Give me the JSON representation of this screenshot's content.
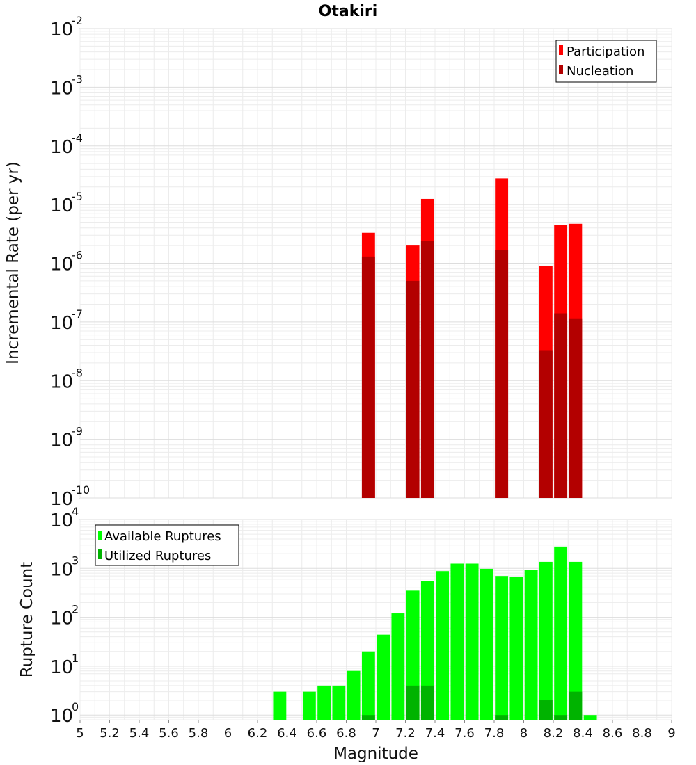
{
  "title": "Otakiri",
  "xlabel": "Magnitude",
  "chart_data": [
    {
      "type": "bar",
      "ylabel": "Incremental Rate (per yr)",
      "yscale": "log",
      "ylim": [
        1e-10,
        0.01
      ],
      "xlim": [
        5,
        9
      ],
      "grid": true,
      "legend_position": "top-right",
      "bin_width": 0.1,
      "y_tick_exponents": [
        "-2",
        "-3",
        "-4",
        "-5",
        "-6",
        "-7",
        "-8",
        "-9",
        "-10"
      ],
      "y_tick_base": "10",
      "series": [
        {
          "name": "Participation",
          "color": "#ff0000",
          "x": [
            6.95,
            7.25,
            7.35,
            7.85,
            8.15,
            8.25,
            8.35
          ],
          "values": [
            3.3e-06,
            2e-06,
            1.25e-05,
            2.8e-05,
            9e-07,
            4.5e-06,
            4.7e-06
          ]
        },
        {
          "name": "Nucleation",
          "color": "#b30000",
          "x": [
            6.95,
            7.25,
            7.35,
            7.85,
            8.15,
            8.25,
            8.35
          ],
          "values": [
            1.3e-06,
            5e-07,
            2.4e-06,
            1.7e-06,
            3.3e-08,
            1.4e-07,
            1.15e-07
          ]
        }
      ]
    },
    {
      "type": "bar",
      "ylabel": "Rupture Count",
      "yscale": "log",
      "ylim": [
        0.8,
        10000
      ],
      "xlim": [
        5,
        9
      ],
      "grid": true,
      "legend_position": "top-left",
      "bin_width": 0.1,
      "y_tick_exponents": [
        "4",
        "3",
        "2",
        "1",
        "0"
      ],
      "y_tick_base": "10",
      "x_ticks": [
        "5",
        "5.2",
        "5.4",
        "5.6",
        "5.8",
        "6",
        "6.2",
        "6.4",
        "6.6",
        "6.8",
        "7",
        "7.2",
        "7.4",
        "7.6",
        "7.8",
        "8",
        "8.2",
        "8.4",
        "8.6",
        "8.8",
        "9"
      ],
      "series": [
        {
          "name": "Available Ruptures",
          "color": "#00ff00",
          "x": [
            6.35,
            6.55,
            6.65,
            6.75,
            6.85,
            6.95,
            7.05,
            7.15,
            7.25,
            7.35,
            7.45,
            7.55,
            7.65,
            7.75,
            7.85,
            7.95,
            8.05,
            8.15,
            8.25,
            8.35,
            8.45
          ],
          "values": [
            3,
            3,
            4,
            4,
            8,
            20,
            44,
            120,
            350,
            550,
            880,
            1250,
            1250,
            980,
            700,
            670,
            920,
            1360,
            2800,
            1360,
            1
          ]
        },
        {
          "name": "Utilized Ruptures",
          "color": "#00b300",
          "x": [
            6.95,
            7.25,
            7.35,
            7.85,
            8.15,
            8.25,
            8.35
          ],
          "values": [
            1,
            4,
            4,
            1,
            2,
            1,
            3
          ]
        }
      ]
    }
  ]
}
